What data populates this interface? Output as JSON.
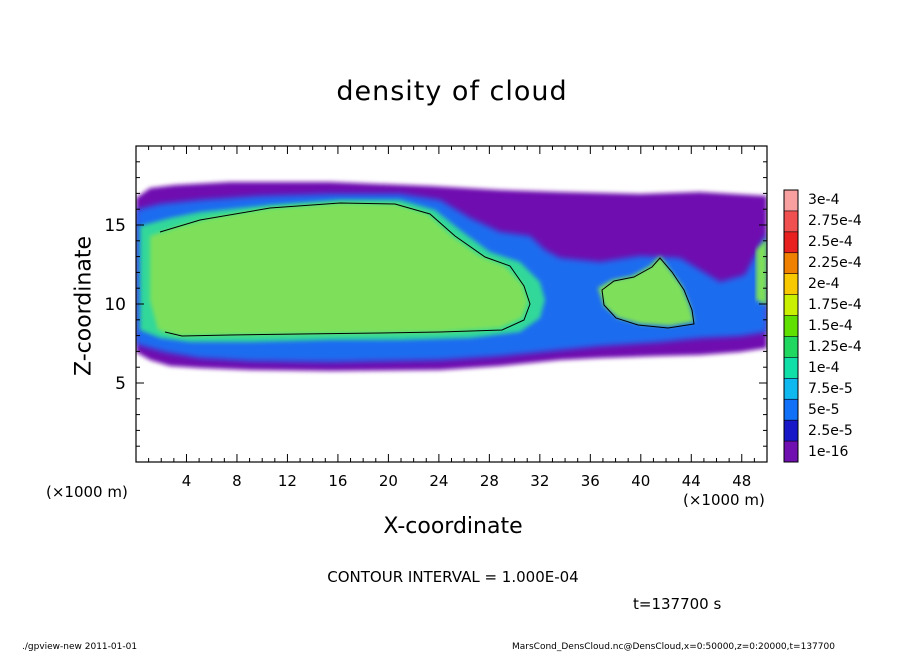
{
  "chart_data": {
    "type": "heatmap",
    "title": "density of cloud",
    "xlabel": "X-coordinate",
    "ylabel": "Z-coordinate",
    "x_unit_left": "(×1000 m)",
    "x_unit_right": "(×1000 m)",
    "xlim": [
      0,
      50
    ],
    "ylim": [
      0,
      20
    ],
    "xticks": [
      "4",
      "8",
      "12",
      "16",
      "20",
      "24",
      "28",
      "32",
      "36",
      "40",
      "44",
      "48"
    ],
    "xtick_values": [
      4,
      8,
      12,
      16,
      20,
      24,
      28,
      32,
      36,
      40,
      44,
      48
    ],
    "yticks": [
      "5",
      "10",
      "15"
    ],
    "ytick_values": [
      5,
      10,
      15
    ],
    "contour_interval": "CONTOUR INTERVAL = 1.000E-04",
    "time": "t=137700 s",
    "colorbar": {
      "labels": [
        "3e-4",
        "2.75e-4",
        "2.5e-4",
        "2.25e-4",
        "2e-4",
        "1.75e-4",
        "1.5e-4",
        "1.25e-4",
        "1e-4",
        "7.5e-5",
        "5e-5",
        "2.5e-5",
        "1e-16"
      ],
      "colors": [
        "#f8a0a0",
        "#f05050",
        "#e82020",
        "#f08000",
        "#f8c800",
        "#c8f000",
        "#60e000",
        "#20d860",
        "#10e0a8",
        "#10b8f0",
        "#1070f8",
        "#1818c8",
        "#7010b0"
      ]
    },
    "field_description_colors": {
      "core": "#7ee05a",
      "edge": "#30d89a",
      "low": "#1a6cf0",
      "outer": "#7010b0"
    }
  },
  "footer": {
    "left": "./gpview-new   2011-01-01",
    "right": "MarsCond_DensCloud.nc@DensCloud,x=0:50000,z=0:20000,t=137700"
  }
}
